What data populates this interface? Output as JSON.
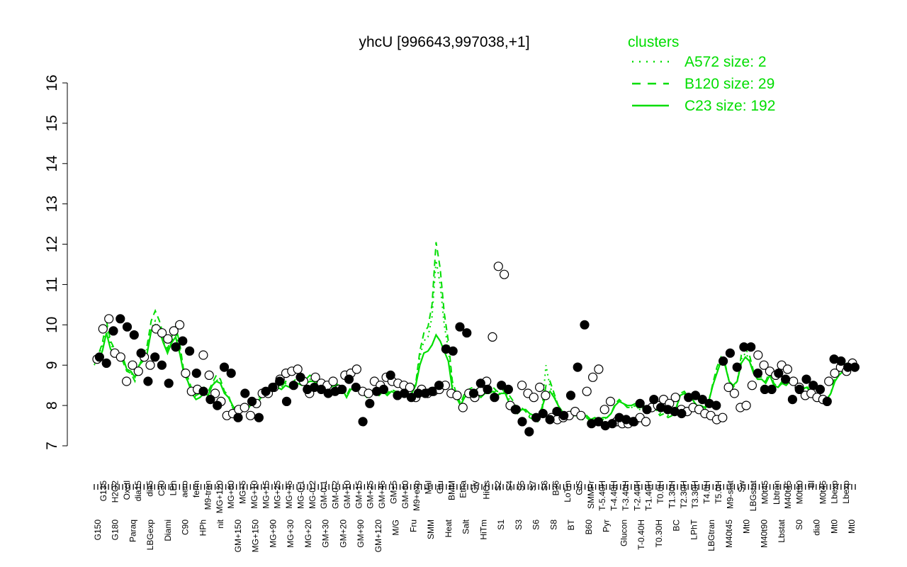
{
  "chart_data": {
    "type": "line",
    "title": "yhcU [996643,997038,+1]",
    "xlabel": "",
    "ylabel": "",
    "ylim": [
      7,
      16
    ],
    "yticks": [
      7,
      8,
      9,
      10,
      11,
      12,
      13,
      14,
      15,
      16
    ],
    "grid": false,
    "legend_position": "top-right",
    "legend_title": "clusters",
    "colors": {
      "cluster": "#00dd00",
      "points": "#000000",
      "axis": "#000000"
    },
    "legend": [
      {
        "label": "A572 size: 2",
        "style": "dotted"
      },
      {
        "label": "B120 size: 29",
        "style": "dashed"
      },
      {
        "label": "C23 size: 192",
        "style": "solid"
      }
    ],
    "x_ticks_top": [
      "G135",
      "H2O2",
      "Oxctl",
      "dia15",
      "dia5",
      "C30",
      "LPh",
      "aero",
      "ferm",
      "M9-tran",
      "MG+120",
      "MG+60",
      "MG+5",
      "MG+10",
      "MG+15",
      "MG+25",
      "MG+45",
      "MG-0.1",
      "MG-0.2",
      "GM-0.1",
      "GM-0.2",
      "GM+10",
      "GM+15",
      "GM+25",
      "GM+45",
      "GM+5",
      "GM+60",
      "M9+exp",
      "Mal",
      "Glu",
      "BMM",
      "Etha",
      "Gly",
      "HiOs",
      "S2",
      "S4",
      "S5",
      "S7",
      "S6",
      "B36",
      "LoTm",
      "G/S",
      "SMMPr",
      "T-5.40H",
      "T-4.40H",
      "T-3.40H",
      "T-2.40H",
      "T-1.40H",
      "T0.0H",
      "T1.30H",
      "T2.30H",
      "T3.30H",
      "T4.0H",
      "T5.0H",
      "M9-stat",
      "Sw",
      "LBGstat",
      "M0t45",
      "Lbtran",
      "M40t45",
      "M0t90",
      "Bl",
      "M0t45",
      "Lbexp",
      "Lbexp"
    ],
    "x_ticks_bottom": [
      "G150",
      "G180",
      "Paraq",
      "LBGexp",
      "Diami",
      "C90",
      "HPh",
      "nit",
      "GM+150",
      "MG+150",
      "MG+90",
      "MG+30",
      "MG+20",
      "GM+30",
      "GM+20",
      "GM+90",
      "GM+120",
      "M/G",
      "Fru",
      "SMM",
      "Heat",
      "Salt",
      "HiTm",
      "S1",
      "S3",
      "S6",
      "S8",
      "BT",
      "B60",
      "Pyr",
      "Glucon",
      "T-0.40H",
      "T0.30H",
      "BC",
      "LPhT",
      "LBGtran",
      "M40t45",
      "Mt0",
      "M40t90",
      "Lbstat",
      "S0",
      "dia0",
      "Mt0",
      "Mt0"
    ],
    "series": [
      {
        "style": "solid",
        "y": [
          9.05,
          9.1,
          9.35,
          9.8,
          9.4,
          9.3,
          9.25,
          9.2,
          8.9,
          8.85,
          8.7,
          9.0,
          9.1,
          9.3,
          9.85,
          10.0,
          9.85,
          9.55,
          9.3,
          9.55,
          9.7,
          9.3,
          8.8,
          8.6,
          8.3,
          8.15,
          8.2,
          8.3,
          8.25,
          8.5,
          8.6,
          8.55,
          8.3,
          8.2,
          8.0,
          7.85,
          7.9,
          7.95,
          7.95,
          8.1,
          8.05,
          8.2,
          8.25,
          8.35,
          8.45,
          8.45,
          8.4,
          8.5,
          8.45,
          8.5,
          8.55,
          8.5,
          8.55,
          8.6,
          8.6,
          8.45,
          8.35,
          8.3,
          8.45,
          8.5,
          8.4,
          8.4,
          8.2,
          8.4,
          8.4,
          8.4,
          8.3,
          8.2,
          8.3,
          8.35,
          8.25,
          8.35,
          8.25,
          8.35,
          8.3,
          8.3,
          8.25,
          8.25,
          8.3,
          8.5,
          9.0,
          9.3,
          9.35,
          9.5,
          9.75,
          9.6,
          9.35,
          9.1,
          8.4,
          8.2,
          8.0,
          8.2,
          8.3,
          8.35,
          8.3,
          8.2,
          8.3,
          8.3,
          8.35,
          8.25,
          8.3,
          8.3,
          8.05,
          7.9,
          7.8,
          7.9,
          7.9,
          7.8,
          7.75,
          7.7,
          7.95,
          8.25,
          8.35,
          8.2,
          8.0,
          7.85,
          7.8,
          7.85,
          7.75,
          7.75,
          7.7,
          7.75,
          7.65,
          7.7,
          7.65,
          7.7,
          7.7,
          7.8,
          8.0,
          8.1,
          8.05,
          8.0,
          8.0,
          8.05,
          7.95,
          8.0,
          7.9,
          7.95,
          7.95,
          7.85,
          7.9,
          7.8,
          7.85,
          7.95,
          8.25,
          8.3,
          8.15,
          8.15,
          8.0,
          8.0,
          7.95,
          8.1,
          8.5,
          8.8,
          9.1,
          9.0,
          8.6,
          8.5,
          8.6,
          9.05,
          9.2,
          9.1,
          8.8,
          8.65,
          8.65,
          8.55,
          8.75,
          8.5,
          8.45,
          8.55,
          8.5,
          8.6,
          8.6,
          8.4,
          8.4,
          8.45,
          8.35,
          8.3,
          8.25,
          8.2,
          8.15,
          8.3,
          8.6,
          8.75,
          8.85,
          8.9,
          8.95,
          9.0
        ]
      },
      {
        "style": "dashed",
        "y": [
          9.1,
          9.25,
          9.55,
          10.1,
          9.6,
          9.4,
          9.3,
          9.1,
          8.85,
          8.8,
          8.6,
          8.95,
          9.25,
          9.5,
          10.1,
          10.35,
          10.1,
          9.75,
          9.4,
          9.7,
          9.95,
          9.55,
          8.85,
          8.7,
          8.4,
          8.25,
          8.3,
          8.45,
          8.35,
          8.55,
          8.75,
          8.65,
          8.35,
          8.25,
          7.95,
          7.75,
          7.85,
          7.9,
          7.95,
          8.15,
          8.1,
          8.3,
          8.35,
          8.45,
          8.55,
          8.5,
          8.45,
          8.6,
          8.55,
          8.6,
          8.7,
          8.6,
          8.65,
          8.75,
          8.7,
          8.5,
          8.4,
          8.35,
          8.55,
          8.6,
          8.5,
          8.5,
          8.25,
          8.45,
          8.5,
          8.5,
          8.35,
          8.25,
          8.35,
          8.4,
          8.3,
          8.4,
          8.3,
          8.4,
          8.35,
          8.35,
          8.3,
          8.3,
          8.35,
          8.55,
          9.35,
          9.8,
          9.95,
          10.5,
          12.05,
          11.4,
          10.3,
          9.6,
          8.6,
          8.3,
          8.05,
          8.3,
          8.4,
          8.45,
          8.4,
          8.3,
          8.4,
          8.4,
          8.45,
          8.35,
          8.35,
          8.4,
          8.25,
          8.1,
          7.9,
          7.95,
          7.85,
          7.7,
          7.65,
          7.6,
          7.85,
          8.5,
          8.6,
          8.3,
          8.0,
          7.8,
          7.75,
          7.8,
          7.7,
          7.7,
          7.65,
          7.7,
          7.6,
          7.65,
          7.6,
          7.65,
          7.7,
          7.8,
          8.05,
          8.15,
          8.05,
          7.95,
          7.95,
          8.0,
          7.9,
          7.95,
          7.85,
          7.9,
          7.9,
          7.75,
          7.8,
          7.7,
          7.75,
          7.85,
          8.3,
          8.35,
          8.2,
          8.2,
          8.0,
          7.95,
          7.9,
          8.1,
          8.55,
          8.95,
          9.2,
          9.05,
          8.6,
          8.45,
          8.6,
          9.25,
          9.4,
          9.25,
          8.85,
          8.7,
          8.7,
          8.6,
          8.85,
          8.55,
          8.45,
          8.6,
          8.55,
          8.65,
          8.65,
          8.4,
          8.4,
          8.5,
          8.35,
          8.3,
          8.2,
          8.15,
          8.1,
          8.3,
          8.7,
          8.9,
          9.0,
          9.05,
          9.1,
          9.05
        ]
      },
      {
        "style": "dotted",
        "y": [
          9.0,
          9.2,
          9.5,
          10.0,
          9.5,
          9.4,
          9.3,
          9.2,
          8.9,
          8.8,
          8.7,
          9.0,
          9.2,
          9.4,
          9.9,
          10.1,
          9.9,
          9.6,
          9.3,
          9.6,
          9.8,
          9.4,
          8.9,
          8.6,
          8.3,
          8.2,
          8.2,
          8.35,
          8.3,
          8.5,
          8.65,
          8.55,
          8.3,
          8.2,
          7.95,
          7.8,
          7.85,
          7.9,
          7.95,
          8.1,
          8.05,
          8.25,
          8.3,
          8.4,
          8.5,
          8.5,
          8.45,
          8.55,
          8.5,
          8.55,
          8.65,
          8.55,
          8.6,
          8.65,
          8.65,
          8.45,
          8.35,
          8.3,
          8.5,
          8.55,
          8.45,
          8.45,
          8.2,
          8.4,
          8.45,
          8.45,
          8.3,
          8.2,
          8.3,
          8.35,
          8.25,
          8.35,
          8.25,
          8.35,
          8.3,
          8.3,
          8.25,
          8.25,
          8.3,
          8.5,
          9.2,
          9.6,
          9.7,
          10.2,
          11.6,
          11.0,
          10.0,
          9.4,
          8.5,
          8.2,
          8.0,
          8.2,
          8.35,
          8.4,
          8.35,
          8.25,
          8.35,
          8.35,
          8.4,
          8.3,
          8.3,
          8.35,
          8.15,
          8.0,
          7.85,
          7.9,
          7.85,
          7.75,
          7.7,
          7.65,
          7.9,
          9.0,
          8.45,
          8.25,
          8.0,
          7.8,
          7.75,
          7.8,
          7.7,
          7.7,
          7.65,
          7.7,
          7.6,
          7.65,
          7.6,
          7.65,
          7.7,
          7.8,
          8.0,
          8.1,
          8.05,
          7.95,
          7.95,
          8.0,
          7.9,
          7.95,
          7.85,
          7.9,
          7.9,
          7.8,
          7.85,
          7.75,
          7.8,
          7.9,
          8.25,
          8.3,
          8.15,
          8.15,
          8.0,
          7.95,
          7.9,
          8.1,
          8.5,
          8.85,
          9.1,
          9.0,
          8.6,
          8.45,
          8.6,
          9.15,
          9.3,
          9.15,
          8.8,
          8.65,
          8.65,
          8.55,
          8.8,
          8.5,
          8.45,
          8.55,
          8.5,
          8.6,
          8.6,
          8.4,
          8.4,
          8.45,
          8.35,
          8.3,
          8.2,
          8.15,
          8.1,
          8.3,
          8.65,
          8.85,
          8.95,
          9.0,
          9.05,
          9.0
        ]
      }
    ],
    "points": {
      "open": [
        9.15,
        9.9,
        10.15,
        9.3,
        9.2,
        8.6,
        9.0,
        8.85,
        9.2,
        9.0,
        9.9,
        9.8,
        9.65,
        9.85,
        10.0,
        8.8,
        8.35,
        8.4,
        9.25,
        8.75,
        8.3,
        8.1,
        7.75,
        7.8,
        7.9,
        7.95,
        7.75,
        8.05,
        8.3,
        8.3,
        8.45,
        8.65,
        8.8,
        8.85,
        8.9,
        8.6,
        8.3,
        8.7,
        8.55,
        8.5,
        8.6,
        8.4,
        8.75,
        8.8,
        8.9,
        8.35,
        8.3,
        8.6,
        8.5,
        8.7,
        8.6,
        8.55,
        8.5,
        8.45,
        8.2,
        8.4,
        8.3,
        8.35,
        8.4,
        8.5,
        8.3,
        8.25,
        7.95,
        8.3,
        8.2,
        8.35,
        8.6,
        9.7,
        11.45,
        11.25,
        8.0,
        7.9,
        8.5,
        8.3,
        8.2,
        8.45,
        8.25,
        7.7,
        7.65,
        7.7,
        7.75,
        7.85,
        7.75,
        8.35,
        8.7,
        8.9,
        7.9,
        8.1,
        7.6,
        7.55,
        7.55,
        7.6,
        7.7,
        7.6,
        7.95,
        8.0,
        8.15,
        8.05,
        8.2,
        7.9,
        7.85,
        7.95,
        7.9,
        7.8,
        7.75,
        7.65,
        7.7,
        8.45,
        8.3,
        7.95,
        8.0,
        8.5,
        9.25,
        9.0,
        8.85,
        8.75,
        9.0,
        8.9,
        8.6,
        8.45,
        8.25,
        8.3,
        8.2,
        8.15,
        8.6,
        8.8,
        8.95,
        8.85,
        9.05
      ],
      "filled": [
        9.2,
        9.05,
        9.85,
        10.15,
        9.95,
        9.75,
        9.3,
        8.6,
        9.2,
        9.0,
        8.55,
        9.45,
        9.6,
        9.35,
        8.8,
        8.35,
        8.15,
        8.0,
        8.95,
        8.8,
        7.7,
        8.3,
        8.1,
        7.7,
        8.35,
        8.45,
        8.6,
        8.1,
        8.5,
        8.7,
        8.4,
        8.45,
        8.4,
        8.3,
        8.35,
        8.4,
        8.65,
        8.45,
        7.6,
        8.05,
        8.35,
        8.4,
        8.75,
        8.25,
        8.3,
        8.2,
        8.3,
        8.3,
        8.35,
        8.5,
        9.4,
        9.35,
        9.95,
        9.8,
        8.3,
        8.55,
        8.4,
        8.2,
        8.5,
        8.4,
        7.9,
        7.6,
        7.35,
        7.7,
        7.8,
        7.65,
        7.85,
        7.75,
        8.25,
        8.95,
        10.0,
        7.55,
        7.6,
        7.5,
        7.55,
        7.7,
        7.65,
        7.6,
        8.05,
        7.9,
        8.15,
        7.95,
        7.9,
        7.85,
        7.8,
        8.2,
        8.25,
        8.15,
        8.05,
        8.0,
        9.1,
        9.3,
        8.95,
        9.45,
        9.45,
        8.8,
        8.4,
        8.4,
        8.8,
        8.65,
        8.15,
        8.4,
        8.65,
        8.5,
        8.4,
        8.1,
        9.15,
        9.1,
        8.95,
        8.95
      ]
    }
  }
}
